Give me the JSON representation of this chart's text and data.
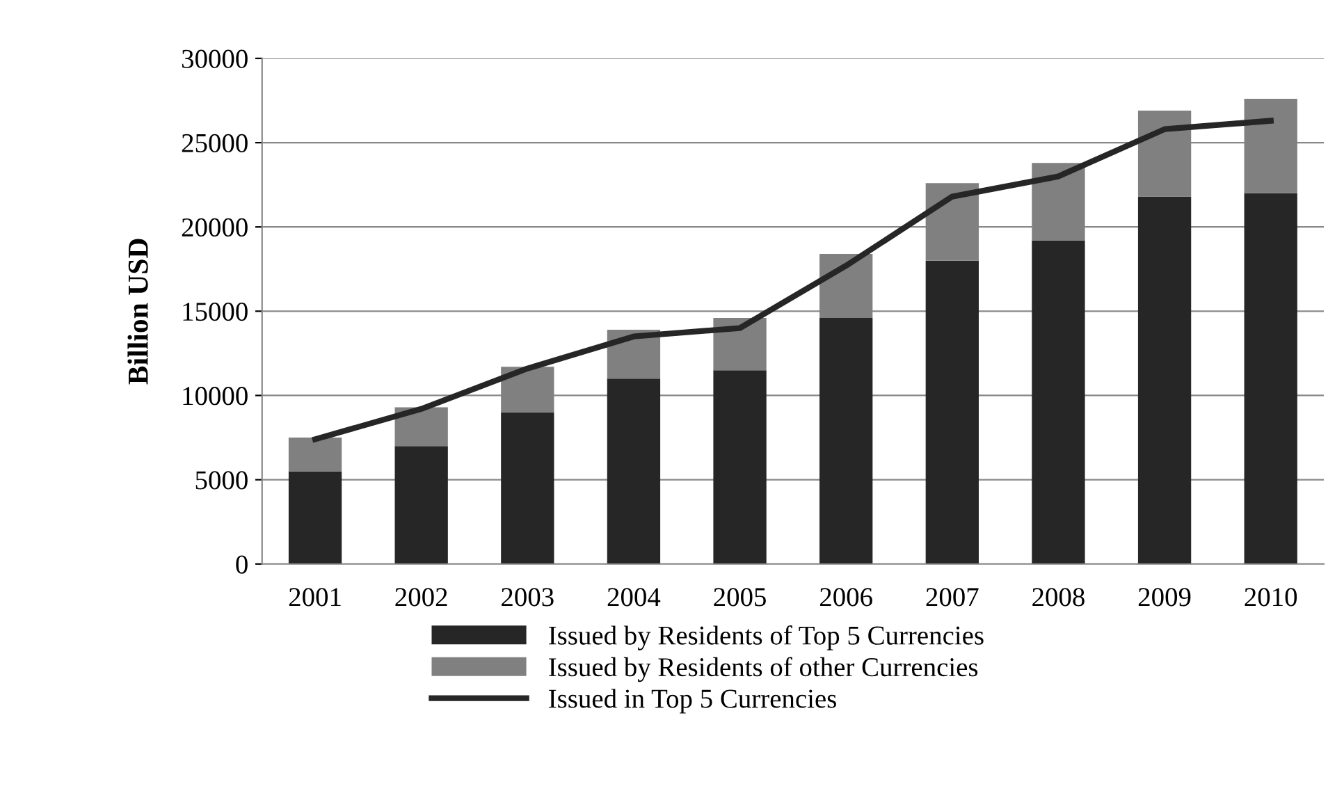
{
  "chart_data": {
    "type": "bar",
    "stacked": true,
    "ylabel": "Billion USD",
    "categories": [
      "2001",
      "2002",
      "2003",
      "2004",
      "2005",
      "2006",
      "2007",
      "2008",
      "2009",
      "2010"
    ],
    "series": [
      {
        "name": "Issued by Residents of Top 5 Currencies",
        "color": "#262626",
        "values": [
          5500,
          7000,
          9000,
          11000,
          11500,
          14600,
          18000,
          19200,
          21800,
          22000
        ]
      },
      {
        "name": "Issued by Residents of other Currencies",
        "color": "#808080",
        "values": [
          2000,
          2300,
          2700,
          2900,
          3100,
          3800,
          4600,
          4600,
          5100,
          5600
        ]
      },
      {
        "name": "Issued in Top 5 Currencies",
        "type": "line",
        "color": "#262626",
        "values": [
          7400,
          9200,
          11600,
          13500,
          14000,
          17700,
          21800,
          23000,
          25800,
          26300
        ]
      }
    ],
    "ylim": [
      0,
      30000
    ],
    "yticks": [
      0,
      5000,
      10000,
      15000,
      20000,
      25000,
      30000
    ],
    "grid": "y",
    "legend": "bottom",
    "marker": "none",
    "line_style": "solid"
  }
}
